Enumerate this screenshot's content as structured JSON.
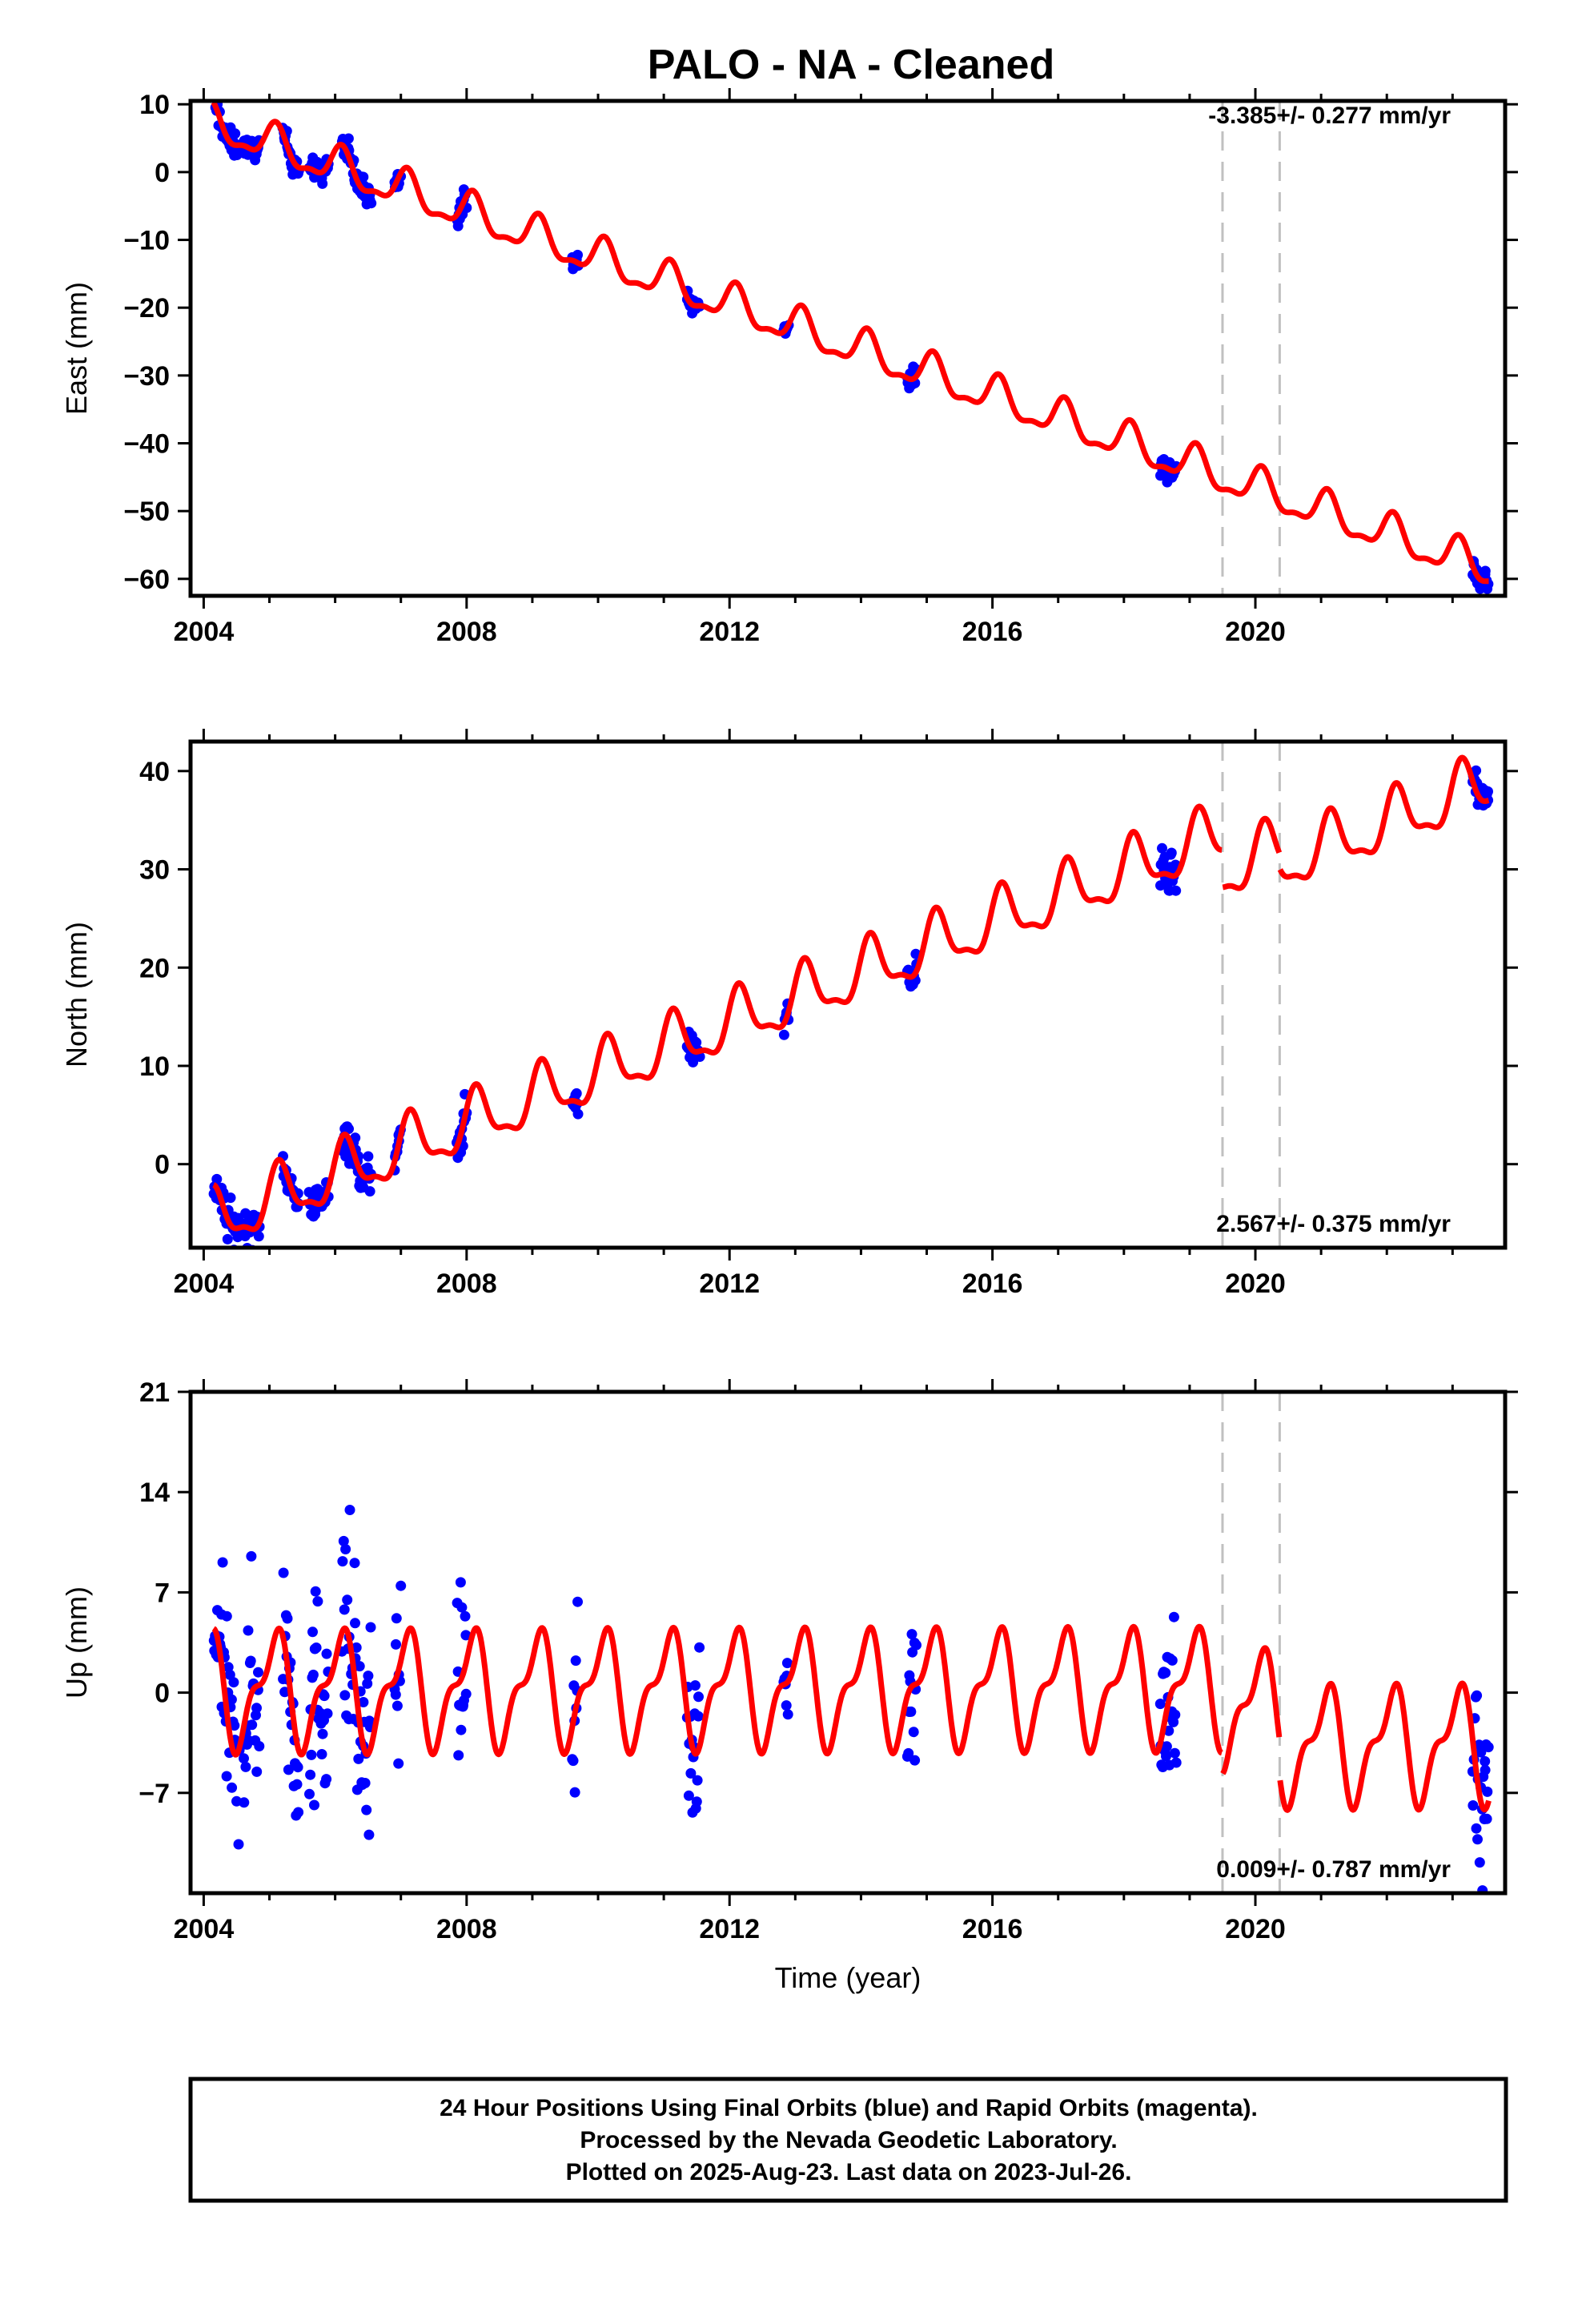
{
  "title": "PALO  - NA - Cleaned",
  "caption": {
    "lines": [
      "24 Hour Positions Using Final Orbits (blue) and Rapid Orbits (magenta).",
      "Processed by the Nevada Geodetic Laboratory.",
      "Plotted on 2025-Aug-23. Last data on 2023-Jul-26."
    ]
  },
  "colors": {
    "observations": "#0000ff",
    "model": "#ff0000",
    "equipment_change_lines": "#c0c0c0",
    "frame": "#000000"
  },
  "chart_data": [
    {
      "type": "scatter",
      "component": "East",
      "ylabel": "East (mm)",
      "xlabel": "",
      "rate_text": "-3.385+/- 0.277 mm/yr",
      "rate_position": "top-right",
      "xlim": [
        2003.8,
        2023.8
      ],
      "ylim": [
        -62.5,
        10.5
      ],
      "x_ticks": [
        2004,
        2008,
        2012,
        2016,
        2020
      ],
      "y_ticks": [
        -60,
        -50,
        -40,
        -30,
        -20,
        -10,
        0,
        10
      ],
      "rate_mm_per_yr": -3.385,
      "reference": {
        "year": 2004.25,
        "value": 6.7
      },
      "seasonal": {
        "annual_amplitude": 2.6,
        "annual_phase": 1.0,
        "semiannual_amplitude": 1.0,
        "semiannual_phase": 0.3
      },
      "steps": [],
      "vertical_lines": [
        2019.5,
        2020.37
      ],
      "observation_spans": [
        [
          2004.15,
          2004.55,
          1.4
        ],
        [
          2004.6,
          2004.85,
          1.0
        ],
        [
          2005.2,
          2005.45,
          1.3
        ],
        [
          2005.6,
          2005.9,
          1.2
        ],
        [
          2006.1,
          2006.55,
          1.6
        ],
        [
          2006.9,
          2007.0,
          0.8
        ],
        [
          2007.85,
          2008.0,
          1.2
        ],
        [
          2009.6,
          2009.7,
          0.8
        ],
        [
          2011.35,
          2011.55,
          1.2
        ],
        [
          2012.82,
          2012.9,
          0.8
        ],
        [
          2014.7,
          2014.85,
          1.2
        ],
        [
          2018.55,
          2018.8,
          1.3
        ],
        [
          2023.3,
          2023.55,
          1.3
        ]
      ],
      "grid": false,
      "legend": "none"
    },
    {
      "type": "scatter",
      "component": "North",
      "ylabel": "North (mm)",
      "xlabel": "",
      "rate_text": "2.567+/- 0.375 mm/yr",
      "rate_position": "bottom-right",
      "xlim": [
        2003.8,
        2023.8
      ],
      "ylim": [
        -8.5,
        43.0
      ],
      "x_ticks": [
        2004,
        2008,
        2012,
        2016,
        2020
      ],
      "y_ticks": [
        0,
        10,
        20,
        30,
        40
      ],
      "rate_mm_per_yr": 2.567,
      "reference": {
        "year": 2004.25,
        "value": -5.6
      },
      "seasonal": {
        "annual_amplitude": 2.8,
        "annual_phase": 0.6,
        "semiannual_amplitude": 1.0,
        "semiannual_phase": 0.0
      },
      "steps": [
        {
          "year": 2019.5,
          "offset": -3.8
        },
        {
          "year": 2020.37,
          "offset": -1.5
        }
      ],
      "vertical_lines": [
        2019.5,
        2020.37
      ],
      "observation_spans": [
        [
          2004.15,
          2004.55,
          1.5
        ],
        [
          2004.6,
          2004.85,
          1.2
        ],
        [
          2005.2,
          2005.45,
          1.3
        ],
        [
          2005.6,
          2005.9,
          1.2
        ],
        [
          2006.1,
          2006.55,
          1.6
        ],
        [
          2006.9,
          2007.0,
          0.8
        ],
        [
          2007.85,
          2008.0,
          1.5
        ],
        [
          2009.6,
          2009.7,
          1.2
        ],
        [
          2011.35,
          2011.55,
          1.0
        ],
        [
          2012.82,
          2012.9,
          1.3
        ],
        [
          2014.7,
          2014.85,
          1.3
        ],
        [
          2018.55,
          2018.8,
          1.6
        ],
        [
          2023.3,
          2023.55,
          1.2
        ]
      ],
      "grid": false,
      "legend": "none"
    },
    {
      "type": "scatter",
      "component": "Up",
      "ylabel": "Up (mm)",
      "xlabel": "Time (year)",
      "rate_text": "0.009+/- 0.787 mm/yr",
      "rate_position": "bottom-right",
      "xlim": [
        2003.8,
        2023.8
      ],
      "ylim": [
        -14.0,
        21.0
      ],
      "x_ticks": [
        2004,
        2008,
        2012,
        2016,
        2020
      ],
      "y_ticks": [
        -7,
        0,
        7,
        14,
        21
      ],
      "rate_mm_per_yr": 0.009,
      "reference": {
        "year": 2004.25,
        "value": 0.2
      },
      "seasonal": {
        "annual_amplitude": 3.5,
        "annual_phase": 1.2,
        "semiannual_amplitude": 1.6,
        "semiannual_phase": -0.9
      },
      "steps": [
        {
          "year": 2019.5,
          "offset": -1.5
        },
        {
          "year": 2020.37,
          "offset": -2.5
        }
      ],
      "vertical_lines": [
        2019.5,
        2020.37
      ],
      "observation_spans": [
        [
          2004.15,
          2004.55,
          4.5
        ],
        [
          2004.6,
          2004.85,
          5.5
        ],
        [
          2005.2,
          2005.45,
          5.0
        ],
        [
          2005.6,
          2005.9,
          5.5
        ],
        [
          2006.1,
          2006.55,
          6.0
        ],
        [
          2006.9,
          2007.0,
          4.0
        ],
        [
          2007.85,
          2008.0,
          4.0
        ],
        [
          2009.6,
          2009.7,
          4.0
        ],
        [
          2011.35,
          2011.55,
          4.5
        ],
        [
          2012.82,
          2012.9,
          2.5
        ],
        [
          2014.7,
          2014.85,
          4.0
        ],
        [
          2018.55,
          2018.8,
          4.0
        ],
        [
          2023.3,
          2023.55,
          4.5
        ]
      ],
      "grid": false,
      "legend": "none"
    }
  ]
}
